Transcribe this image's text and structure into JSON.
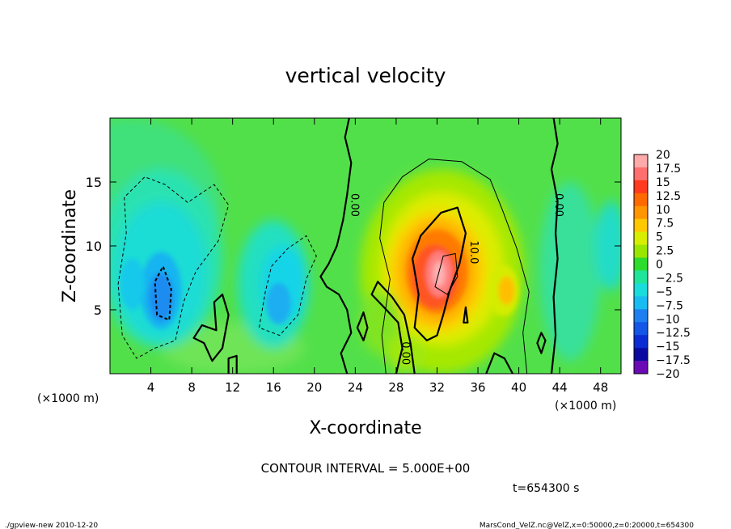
{
  "chart_data": {
    "type": "heatmap",
    "title": "vertical velocity",
    "xlabel": "X-coordinate",
    "ylabel": "Z-coordinate",
    "x_unit": "(×1000 m)",
    "x_unit_right": "(×1000 m)",
    "xlim": [
      0,
      50
    ],
    "ylim": [
      0,
      20
    ],
    "x_ticks": [
      4,
      8,
      12,
      16,
      20,
      24,
      28,
      32,
      36,
      40,
      44,
      48
    ],
    "y_ticks": [
      5,
      10,
      15
    ],
    "colorbar": {
      "levels": [
        20,
        17.5,
        15,
        12.5,
        10,
        7.5,
        5,
        2.5,
        0,
        -2.5,
        -5,
        -7.5,
        -10,
        -12.5,
        -15,
        -17.5,
        -20
      ],
      "labels": [
        "20",
        "17.5",
        "15",
        "12.5",
        "10",
        "7.5",
        "5",
        "2.5",
        "0",
        "−2.5",
        "−5",
        "−7.5",
        "−10",
        "−12.5",
        "−15",
        "−17.5",
        "−20"
      ],
      "colors": [
        "#ffaaaa",
        "#ff6f6f",
        "#ff3a1e",
        "#ff6a00",
        "#ff9600",
        "#ffc800",
        "#d8ee00",
        "#9ae600",
        "#2ddc2d",
        "#20e49a",
        "#19dcdc",
        "#19bcf2",
        "#1e80f0",
        "#1456e6",
        "#0a2cd2",
        "#0a0aa0",
        "#6a0ab4"
      ]
    },
    "contour_labels": [
      "0.00",
      "0.00",
      "0.00",
      "10.0"
    ],
    "features": [
      {
        "type": "updraft",
        "x_center": 32,
        "z_center": 8,
        "peak": 17.5
      },
      {
        "type": "downdraft",
        "x_center": 5,
        "z_center": 6,
        "peak": -10
      },
      {
        "type": "downdraft",
        "x_center": 17,
        "z_center": 7,
        "peak": -7.5
      }
    ],
    "contour_interval": "CONTOUR INTERVAL = 5.000E+00",
    "time_label": "t=654300 s"
  },
  "footer": {
    "left": "./gpview-new  2010-12-20",
    "right": "MarsCond_VelZ.nc@VelZ,x=0:50000,z=0:20000,t=654300"
  }
}
